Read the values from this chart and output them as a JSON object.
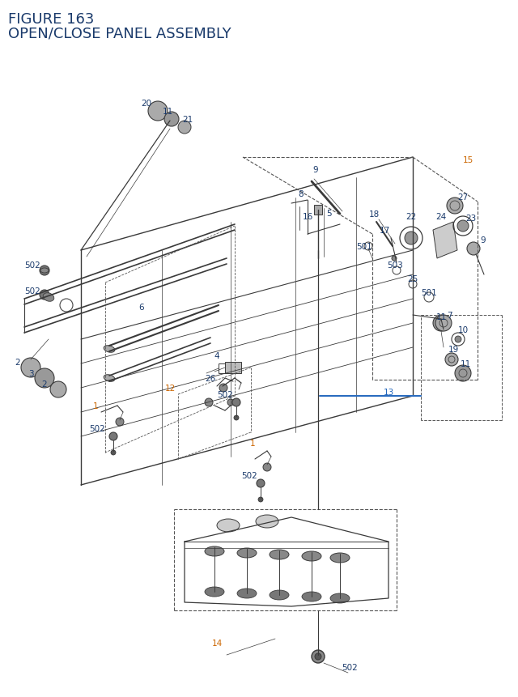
{
  "title_line1": "FIGURE 163",
  "title_line2": "OPEN/CLOSE PANEL ASSEMBLY",
  "title_color": "#1a3a6b",
  "title_fontsize": 13,
  "bg_color": "#ffffff",
  "fig_w": 6.4,
  "fig_h": 8.62,
  "dpi": 100,
  "line_color": "#3a3a3a",
  "dash_color": "#555555",
  "label_color_blue": "#1a3a6b",
  "label_color_orange": "#cc6600",
  "label_color_cyan": "#2266bb",
  "label_fs": 7.5
}
